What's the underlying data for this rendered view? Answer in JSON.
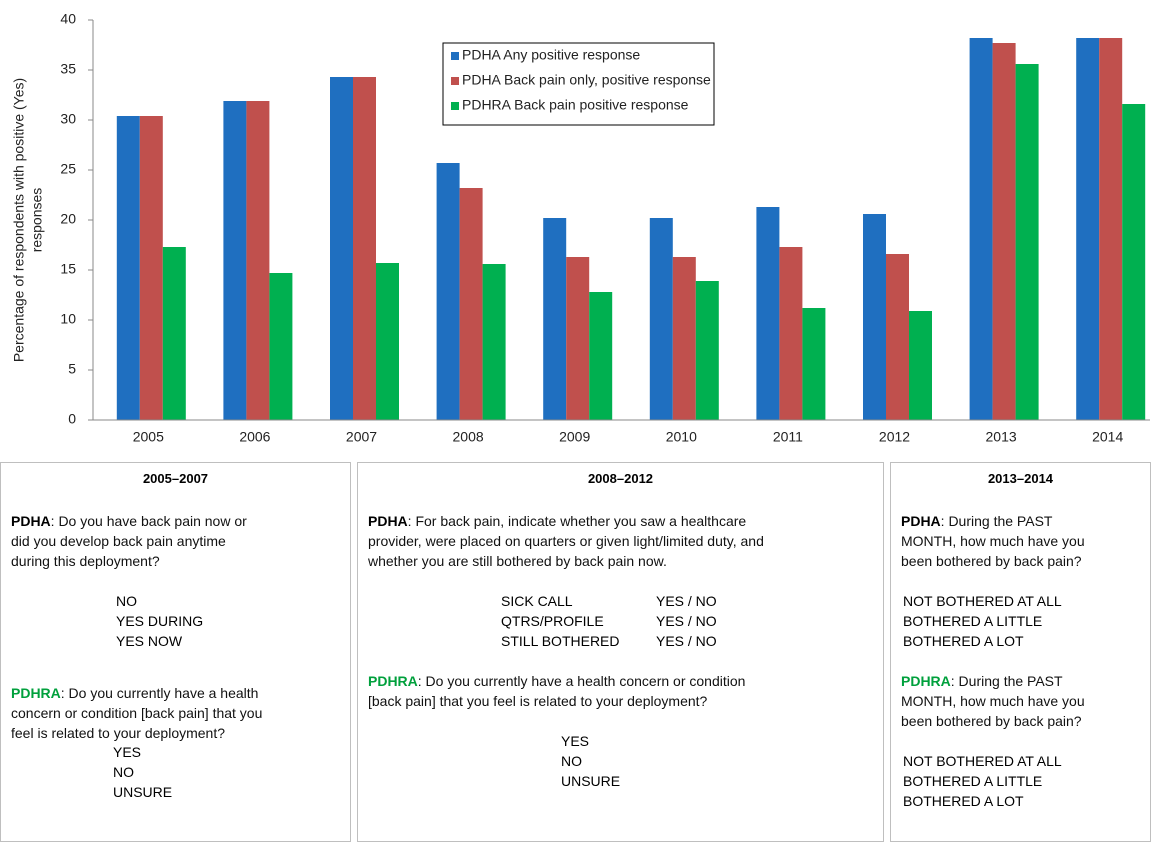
{
  "chart_data": {
    "type": "bar",
    "ylabel": [
      "Percentage of  respondents with positive (Yes)",
      "responses"
    ],
    "categories": [
      "2005",
      "2006",
      "2007",
      "2008",
      "2009",
      "2010",
      "2011",
      "2012",
      "2013",
      "2014"
    ],
    "series": [
      {
        "name": "PDHA Any positive response",
        "color": "#1f6fc0",
        "values": [
          30.4,
          31.9,
          34.3,
          25.7,
          20.2,
          20.2,
          21.3,
          20.6,
          38.2,
          38.2
        ]
      },
      {
        "name": "PDHA Back pain only, positive response",
        "color": "#c0504d",
        "values": [
          30.4,
          31.9,
          34.3,
          23.2,
          16.3,
          16.3,
          17.3,
          16.6,
          37.7,
          38.2
        ]
      },
      {
        "name": "PDHRA Back pain positive response",
        "color": "#00b050",
        "values": [
          17.3,
          14.7,
          15.7,
          15.6,
          12.8,
          13.9,
          11.2,
          10.9,
          35.6,
          31.6
        ]
      }
    ],
    "ylim": [
      0,
      40
    ],
    "yticks": [
      0,
      5,
      10,
      15,
      20,
      25,
      30,
      35,
      40
    ],
    "legend": "upper center"
  },
  "panels": [
    {
      "title": "2005–2007",
      "sections": [
        {
          "label": "PDHA",
          "label_color": "#000000",
          "lines": [
            ": Do you have back pain now or",
            "did you develop back pain anytime",
            "during this deployment?"
          ],
          "options": [
            [
              "NO"
            ],
            [
              "YES DURING"
            ],
            [
              "YES NOW"
            ]
          ]
        },
        {
          "label": "PDHRA",
          "label_color": "#00a03c",
          "lines": [
            ": Do you currently have a health",
            "concern or condition [back pain] that you",
            "feel is related to your deployment?"
          ],
          "options": [
            [
              "YES"
            ],
            [
              "NO"
            ],
            [
              "UNSURE"
            ]
          ]
        }
      ]
    },
    {
      "title": "2008–2012",
      "sections": [
        {
          "label": "PDHA",
          "label_color": "#000000",
          "lines": [
            ": For back pain, indicate whether you saw a healthcare",
            "provider, were placed on quarters or given light/limited duty, and",
            "whether you are still bothered by back pain now."
          ],
          "options": [
            [
              "SICK CALL",
              "YES / NO"
            ],
            [
              "QTRS/PROFILE",
              "YES / NO"
            ],
            [
              "STILL BOTHERED",
              "YES / NO"
            ]
          ]
        },
        {
          "label": "PDHRA",
          "label_color": "#00a03c",
          "lines": [
            ": Do you currently have a health concern or condition",
            "[back pain] that you feel is related to your deployment?"
          ],
          "options": [
            [
              "YES"
            ],
            [
              "NO"
            ],
            [
              "UNSURE"
            ]
          ]
        }
      ]
    },
    {
      "title": "2013–2014",
      "sections": [
        {
          "label": "PDHA",
          "label_color": "#000000",
          "lines": [
            ": During the PAST",
            "MONTH, how much have you",
            "been bothered by back pain?"
          ],
          "options": [
            [
              "NOT BOTHERED AT ALL"
            ],
            [
              "BOTHERED A LITTLE"
            ],
            [
              "BOTHERED A LOT"
            ]
          ]
        },
        {
          "label": "PDHRA",
          "label_color": "#00a03c",
          "lines": [
            ": During the PAST",
            "MONTH, how much have you",
            "been bothered by back pain?"
          ],
          "options": [
            [
              "NOT BOTHERED AT ALL"
            ],
            [
              "BOTHERED A LITTLE"
            ],
            [
              "BOTHERED A LOT"
            ]
          ]
        }
      ]
    }
  ]
}
